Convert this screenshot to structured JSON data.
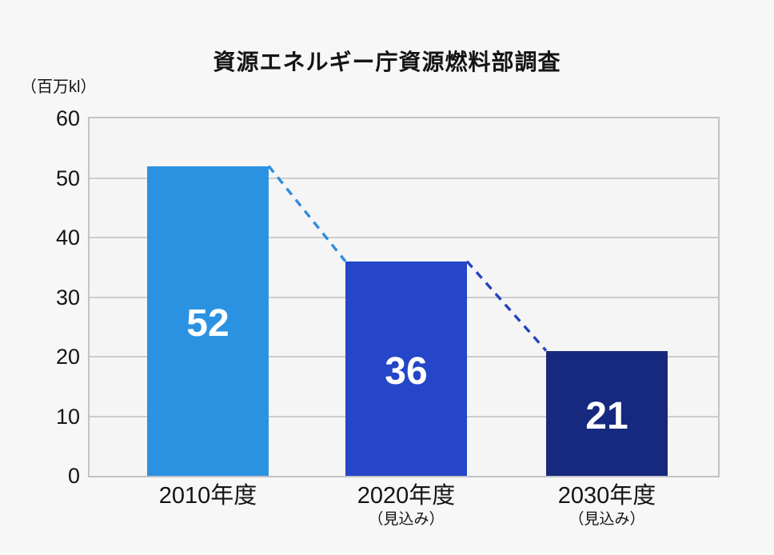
{
  "title": "資源エネルギー庁資源燃料部調査",
  "unit_label": "（百万kl）",
  "colors": {
    "background": "#f7f7f8",
    "plot_background": "#f5f5f6",
    "plot_border": "#c3c3c6",
    "gridline": "#cccccd",
    "text": "#141414",
    "value_label": "#ffffff"
  },
  "chart_data": {
    "type": "bar",
    "title": "資源エネルギー庁資源燃料部調査",
    "ylabel": "（百万kl）",
    "xlabel": "",
    "categories": [
      "2010年度",
      "2020年度",
      "2030年度"
    ],
    "category_sublabels": [
      "",
      "（見込み）",
      "（見込み）"
    ],
    "values": [
      52,
      36,
      21
    ],
    "bar_colors": [
      "#2b92e2",
      "#2546c8",
      "#16297e"
    ],
    "connector_colors": [
      "#2f8cdb",
      "#2343c0"
    ],
    "connector_style": "dashed",
    "ylim": [
      0,
      60
    ],
    "yticks": [
      0,
      10,
      20,
      30,
      40,
      50,
      60
    ],
    "grid": true,
    "legend": false
  }
}
